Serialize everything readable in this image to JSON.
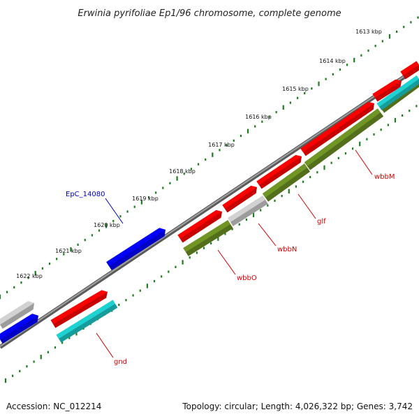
{
  "title": "Erwinia pyrifoliae Ep1/96 chromosome, complete genome",
  "footer": {
    "accession": "Accession: NC_012214",
    "summary": "Topology: circular; Length: 4,026,322 bp; Genes: 3,742"
  },
  "ruler_labels": [
    "1613 kbp",
    "1614 kbp",
    "1615 kbp",
    "1616 kbp",
    "1617 kbp",
    "1618 kbp",
    "1619 kbp",
    "1620 kbp",
    "1621 kbp",
    "1622 kbp"
  ],
  "colors": {
    "backbone": "#7a7a7a",
    "ruler": "#1e7d1e",
    "red": "#ff0000",
    "blue": "#0000ff",
    "cyan": "#1ec8c8",
    "olive": "#6b8e23",
    "gray": "#c8c8c8",
    "label_red": "#d40000",
    "label_blue": "#0000c0"
  },
  "gene_labels": [
    {
      "text": "wbbM",
      "color": "label_red"
    },
    {
      "text": "glf",
      "color": "label_red"
    },
    {
      "text": "wbbN",
      "color": "label_red"
    },
    {
      "text": "wbbO",
      "color": "label_red"
    },
    {
      "text": "gnd",
      "color": "label_red"
    },
    {
      "text": "EpC_14080",
      "color": "label_blue"
    }
  ]
}
